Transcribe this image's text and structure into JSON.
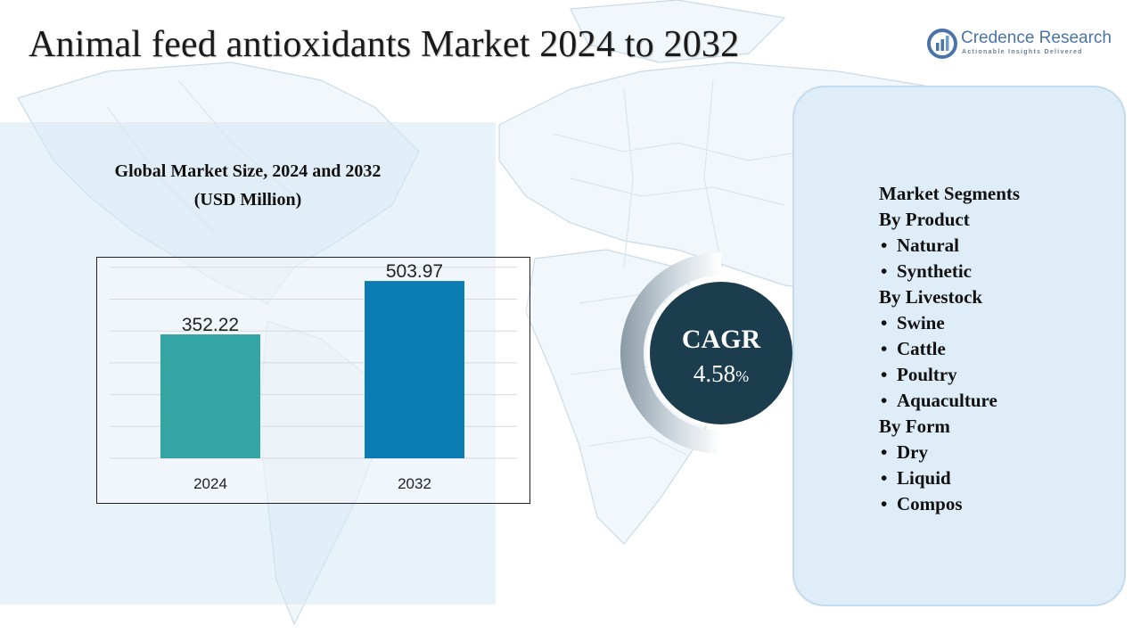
{
  "page": {
    "title": "Animal feed antioxidants Market 2024 to 2032"
  },
  "logo": {
    "name": "Credence Research",
    "tagline": "Actionable Insights Delivered",
    "color": "#4a73a8"
  },
  "chart": {
    "heading_line1": "Global Market Size, 2024 and 2032",
    "heading_line2": "(USD Million)"
  },
  "chart_data": {
    "type": "bar",
    "title": "Global Market Size, 2024 and 2032 (USD Million)",
    "categories": [
      "2024",
      "2032"
    ],
    "values": [
      352.22,
      503.97
    ],
    "value_labels": [
      "352.22",
      "503.97"
    ],
    "colors": [
      "#35a5a3",
      "#0a7cb2"
    ],
    "ylim": [
      0,
      560
    ],
    "grid": true,
    "xlabel": "",
    "ylabel": ""
  },
  "cagr": {
    "label": "CAGR",
    "value": "4.58",
    "unit": "%",
    "circle_color": "#1b3d4e"
  },
  "segments": {
    "heading": "Market Segments",
    "groups": [
      {
        "title": "By Product",
        "items": [
          "Natural",
          "Synthetic"
        ]
      },
      {
        "title": "By Livestock",
        "items": [
          "Swine",
          "Cattle",
          "Poultry",
          "Aquaculture"
        ]
      },
      {
        "title": "By Form",
        "items": [
          "Dry",
          "Liquid",
          "Compos"
        ]
      }
    ]
  }
}
